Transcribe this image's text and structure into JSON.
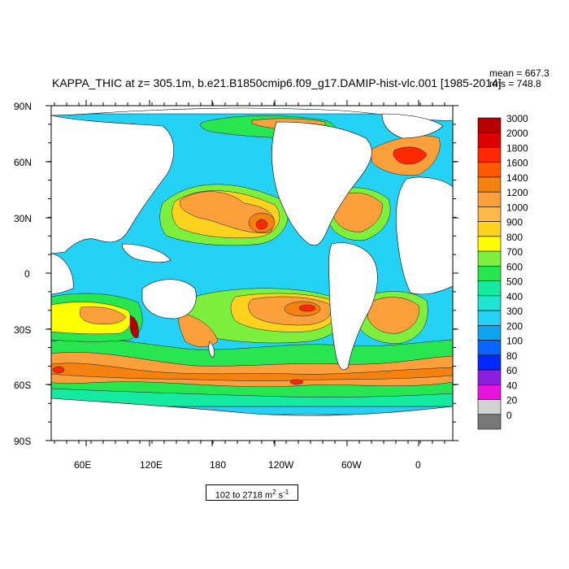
{
  "title": "KAPPA_THIC at z= 305.1m, b.e21.B1850cmip6.f09_g17.DAMIP-hist-vlc.001 [1985-2014]",
  "stats": {
    "mean": "mean = 667.3",
    "rms": "rms = 748.8"
  },
  "range_note": {
    "prefix": "102 to 2718 m",
    "sup1": "2",
    "mid": " s",
    "sup2": "-1"
  },
  "y_ticks": [
    "90N",
    "60N",
    "30N",
    "0",
    "30S",
    "60S",
    "90S"
  ],
  "x_ticks": [
    "60E",
    "120E",
    "180",
    "120W",
    "60W",
    "0"
  ],
  "colorbar": {
    "levels": [
      "3000",
      "2000",
      "1800",
      "1600",
      "1400",
      "1200",
      "1000",
      "900",
      "800",
      "700",
      "600",
      "500",
      "400",
      "300",
      "200",
      "100",
      "80",
      "60",
      "40",
      "20",
      "0"
    ],
    "colors": [
      "#b80000",
      "#dc0000",
      "#ff2800",
      "#ff5a00",
      "#f5820f",
      "#fca03c",
      "#ffb848",
      "#ffd21e",
      "#ffff00",
      "#7cf03c",
      "#28e650",
      "#14eba0",
      "#1ee6d2",
      "#23d2f5",
      "#0ea5f0",
      "#0a64ff",
      "#0028ff",
      "#8c1ede",
      "#e614dc",
      "#d2d2d2",
      "#787878"
    ]
  },
  "field_colors": {
    "land": "#ffffff",
    "base": "#23d2f5",
    "cool": "#14eba0",
    "green": "#28e650",
    "lime": "#7cf03c",
    "yellow": "#ffff00",
    "gold": "#ffd21e",
    "orange": "#fca03c",
    "deep": "#f5820f",
    "red": "#ff2800",
    "dark": "#b80000"
  }
}
